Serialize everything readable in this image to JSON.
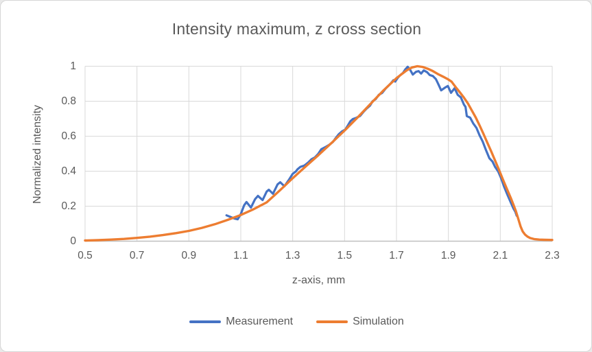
{
  "window": {
    "background": "#ffffff",
    "border_color": "#d6d6d6",
    "text_color": "#595959",
    "gridline_color": "#d9d9d9",
    "axis_line_color": "#bfbfbf"
  },
  "chart_data": {
    "type": "line",
    "title": "Intensity maximum, z cross section",
    "xlabel": "z-axis, mm",
    "ylabel": "Normalized intensity",
    "xlim": [
      0.5,
      2.3
    ],
    "ylim": [
      0,
      1
    ],
    "x_ticks": [
      0.5,
      0.7,
      0.9,
      1.1,
      1.3,
      1.5,
      1.7,
      1.9,
      2.1,
      2.3
    ],
    "x_tick_labels": [
      "0.5",
      "0.7",
      "0.9",
      "1.1",
      "1.3",
      "1.5",
      "1.7",
      "1.9",
      "2.1",
      "2.3"
    ],
    "y_ticks": [
      0,
      0.2,
      0.4,
      0.6,
      0.8,
      1
    ],
    "y_tick_labels": [
      "0",
      "0.2",
      "0.4",
      "0.6",
      "0.8",
      "1"
    ],
    "grid": true,
    "legend_position": "bottom",
    "series": [
      {
        "name": "Measurement",
        "color": "#4472C4",
        "stroke_width": 3.2,
        "points": [
          [
            1.045,
            0.148
          ],
          [
            1.06,
            0.139
          ],
          [
            1.075,
            0.13
          ],
          [
            1.088,
            0.125
          ],
          [
            1.1,
            0.155
          ],
          [
            1.113,
            0.205
          ],
          [
            1.122,
            0.224
          ],
          [
            1.139,
            0.192
          ],
          [
            1.155,
            0.24
          ],
          [
            1.166,
            0.259
          ],
          [
            1.184,
            0.235
          ],
          [
            1.2,
            0.284
          ],
          [
            1.208,
            0.294
          ],
          [
            1.224,
            0.271
          ],
          [
            1.242,
            0.325
          ],
          [
            1.252,
            0.337
          ],
          [
            1.268,
            0.314
          ],
          [
            1.285,
            0.35
          ],
          [
            1.3,
            0.385
          ],
          [
            1.312,
            0.398
          ],
          [
            1.318,
            0.41
          ],
          [
            1.33,
            0.425
          ],
          [
            1.345,
            0.432
          ],
          [
            1.36,
            0.45
          ],
          [
            1.372,
            0.468
          ],
          [
            1.385,
            0.478
          ],
          [
            1.398,
            0.498
          ],
          [
            1.41,
            0.525
          ],
          [
            1.425,
            0.537
          ],
          [
            1.44,
            0.55
          ],
          [
            1.455,
            0.567
          ],
          [
            1.465,
            0.588
          ],
          [
            1.478,
            0.612
          ],
          [
            1.49,
            0.628
          ],
          [
            1.502,
            0.637
          ],
          [
            1.512,
            0.66
          ],
          [
            1.522,
            0.685
          ],
          [
            1.532,
            0.698
          ],
          [
            1.545,
            0.705
          ],
          [
            1.56,
            0.716
          ],
          [
            1.572,
            0.738
          ],
          [
            1.585,
            0.758
          ],
          [
            1.598,
            0.775
          ],
          [
            1.608,
            0.8
          ],
          [
            1.62,
            0.812
          ],
          [
            1.632,
            0.837
          ],
          [
            1.645,
            0.848
          ],
          [
            1.658,
            0.872
          ],
          [
            1.668,
            0.887
          ],
          [
            1.678,
            0.902
          ],
          [
            1.688,
            0.92
          ],
          [
            1.695,
            0.912
          ],
          [
            1.705,
            0.934
          ],
          [
            1.715,
            0.95
          ],
          [
            1.725,
            0.962
          ],
          [
            1.733,
            0.98
          ],
          [
            1.743,
            0.997
          ],
          [
            1.753,
            0.978
          ],
          [
            1.763,
            0.952
          ],
          [
            1.775,
            0.968
          ],
          [
            1.785,
            0.972
          ],
          [
            1.795,
            0.958
          ],
          [
            1.805,
            0.976
          ],
          [
            1.818,
            0.966
          ],
          [
            1.828,
            0.95
          ],
          [
            1.84,
            0.944
          ],
          [
            1.852,
            0.926
          ],
          [
            1.862,
            0.895
          ],
          [
            1.872,
            0.862
          ],
          [
            1.886,
            0.877
          ],
          [
            1.898,
            0.887
          ],
          [
            1.91,
            0.848
          ],
          [
            1.924,
            0.874
          ],
          [
            1.936,
            0.836
          ],
          [
            1.948,
            0.822
          ],
          [
            1.96,
            0.78
          ],
          [
            1.966,
            0.768
          ],
          [
            1.971,
            0.715
          ],
          [
            1.984,
            0.706
          ],
          [
            1.996,
            0.672
          ],
          [
            2.008,
            0.648
          ],
          [
            2.02,
            0.605
          ],
          [
            2.032,
            0.57
          ],
          [
            2.045,
            0.52
          ],
          [
            2.058,
            0.474
          ],
          [
            2.07,
            0.455
          ],
          [
            2.08,
            0.424
          ],
          [
            2.092,
            0.398
          ],
          [
            2.103,
            0.36
          ],
          [
            2.114,
            0.314
          ],
          [
            2.127,
            0.267
          ],
          [
            2.14,
            0.222
          ],
          [
            2.151,
            0.186
          ],
          [
            2.158,
            0.168
          ],
          [
            2.163,
            0.146
          ]
        ]
      },
      {
        "name": "Simulation",
        "color": "#ED7D31",
        "stroke_width": 3.4,
        "points": [
          [
            0.5,
            0.004
          ],
          [
            0.55,
            0.006
          ],
          [
            0.6,
            0.009
          ],
          [
            0.65,
            0.013
          ],
          [
            0.7,
            0.019
          ],
          [
            0.75,
            0.026
          ],
          [
            0.8,
            0.035
          ],
          [
            0.85,
            0.046
          ],
          [
            0.9,
            0.059
          ],
          [
            0.95,
            0.076
          ],
          [
            1.0,
            0.097
          ],
          [
            1.05,
            0.122
          ],
          [
            1.1,
            0.15
          ],
          [
            1.15,
            0.183
          ],
          [
            1.2,
            0.222
          ],
          [
            1.25,
            0.29
          ],
          [
            1.3,
            0.36
          ],
          [
            1.35,
            0.427
          ],
          [
            1.4,
            0.493
          ],
          [
            1.45,
            0.562
          ],
          [
            1.5,
            0.632
          ],
          [
            1.55,
            0.707
          ],
          [
            1.6,
            0.785
          ],
          [
            1.65,
            0.862
          ],
          [
            1.7,
            0.932
          ],
          [
            1.72,
            0.955
          ],
          [
            1.74,
            0.977
          ],
          [
            1.76,
            0.993
          ],
          [
            1.78,
            1.0
          ],
          [
            1.8,
            0.996
          ],
          [
            1.82,
            0.986
          ],
          [
            1.84,
            0.972
          ],
          [
            1.86,
            0.955
          ],
          [
            1.88,
            0.94
          ],
          [
            1.9,
            0.924
          ],
          [
            1.912,
            0.912
          ],
          [
            1.918,
            0.9
          ],
          [
            1.93,
            0.877
          ],
          [
            1.945,
            0.849
          ],
          [
            1.96,
            0.82
          ],
          [
            1.975,
            0.788
          ],
          [
            1.99,
            0.748
          ],
          [
            2.005,
            0.708
          ],
          [
            2.02,
            0.662
          ],
          [
            2.035,
            0.614
          ],
          [
            2.05,
            0.563
          ],
          [
            2.065,
            0.513
          ],
          [
            2.08,
            0.46
          ],
          [
            2.095,
            0.408
          ],
          [
            2.11,
            0.353
          ],
          [
            2.125,
            0.3
          ],
          [
            2.14,
            0.248
          ],
          [
            2.15,
            0.21
          ],
          [
            2.16,
            0.172
          ],
          [
            2.17,
            0.124
          ],
          [
            2.178,
            0.085
          ],
          [
            2.186,
            0.056
          ],
          [
            2.195,
            0.038
          ],
          [
            2.205,
            0.026
          ],
          [
            2.215,
            0.018
          ],
          [
            2.23,
            0.012
          ],
          [
            2.25,
            0.009
          ],
          [
            2.27,
            0.008
          ],
          [
            2.3,
            0.007
          ]
        ]
      }
    ]
  }
}
